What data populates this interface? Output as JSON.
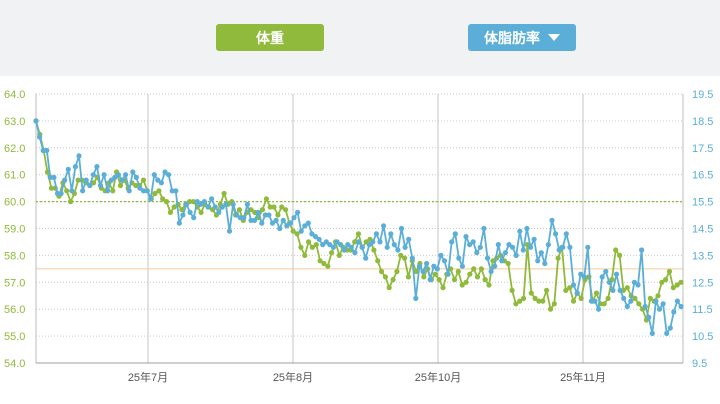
{
  "header": {
    "weight_button": {
      "label": "体重",
      "color": "#8fba3b"
    },
    "fat_button": {
      "label": "体脂肪率",
      "color": "#5aaed8",
      "icon": "caret-down-icon"
    }
  },
  "chart_data": {
    "type": "line",
    "title": "",
    "xlabel": "",
    "ylabel": "",
    "y_left": {
      "min": 54.0,
      "max": 64.0,
      "ticks": [
        "54.0",
        "55.0",
        "56.0",
        "57.0",
        "58.0",
        "59.0",
        "60.0",
        "61.0",
        "62.0",
        "63.0",
        "64.0"
      ],
      "color": "#8fba3b"
    },
    "y_right": {
      "min": 9.5,
      "max": 19.5,
      "ticks": [
        "9.5",
        "10.5",
        "11.5",
        "12.5",
        "13.5",
        "14.5",
        "15.5",
        "16.5",
        "17.5",
        "18.5",
        "19.5"
      ],
      "color": "#5aaed8"
    },
    "x_ticks": [
      "25年7月",
      "25年8月",
      "25年10月",
      "25年11月"
    ],
    "grid": true,
    "reference_lines": [
      {
        "axis": "left",
        "value": 60.0,
        "color": "#8fba3b",
        "style": "dotted"
      },
      {
        "axis": "left",
        "value": 57.5,
        "color": "#f5c99a",
        "style": "solid"
      }
    ],
    "series": [
      {
        "axis": "left",
        "color": "#8fba3b",
        "values": [
          63.0,
          62.5,
          61.9,
          61.1,
          60.5,
          60.5,
          60.2,
          60.7,
          60.4,
          60.0,
          60.3,
          60.8,
          60.8,
          60.7,
          60.6,
          60.7,
          60.9,
          60.5,
          60.4,
          60.7,
          60.4,
          61.1,
          60.6,
          60.8,
          60.5,
          60.7,
          60.6,
          60.6,
          60.8,
          60.4,
          60.1,
          60.3,
          60.4,
          60.1,
          60.0,
          59.6,
          59.8,
          59.9,
          59.7,
          59.9,
          60.0,
          60.0,
          59.8,
          59.6,
          59.9,
          59.8,
          59.7,
          59.5,
          59.9,
          60.3,
          59.9,
          60.0,
          59.5,
          59.7,
          59.3,
          59.6,
          59.7,
          59.6,
          59.4,
          59.7,
          60.1,
          59.8,
          59.8,
          59.5,
          59.8,
          59.7,
          59.2,
          58.9,
          58.8,
          58.3,
          58.0,
          58.5,
          58.3,
          58.4,
          57.8,
          57.7,
          57.6,
          58.1,
          58.5,
          58.0,
          58.3,
          58.2,
          58.2,
          58.5,
          58.8,
          58.3,
          58.5,
          58.6,
          58.2,
          57.8,
          57.4,
          57.2,
          56.8,
          57.1,
          57.4,
          58.0,
          57.9,
          57.2,
          57.8,
          57.4,
          57.7,
          57.2,
          57.5,
          57.1,
          57.3,
          57.1,
          56.8,
          57.3,
          57.5,
          57.1,
          57.4,
          56.9,
          57.0,
          57.3,
          57.5,
          57.2,
          57.5,
          57.1,
          56.9,
          57.8,
          57.9,
          58.0,
          57.8,
          57.7,
          56.7,
          56.2,
          56.3,
          56.4,
          58.4,
          56.6,
          56.4,
          56.3,
          56.3,
          56.7,
          56.0,
          56.2,
          57.9,
          58.3,
          56.7,
          56.8,
          56.3,
          56.6,
          56.4,
          57.1,
          57.2,
          56.3,
          56.6,
          56.2,
          56.2,
          56.4,
          57.1,
          58.2,
          58.0,
          56.7,
          56.8,
          56.5,
          56.4,
          56.2,
          56.0,
          55.6,
          56.4,
          56.3,
          56.5,
          57.0,
          57.1,
          57.4,
          56.8,
          56.9,
          57.0
        ]
      },
      {
        "axis": "right",
        "color": "#5aaed8",
        "values": [
          18.5,
          17.9,
          17.4,
          17.4,
          16.4,
          16.4,
          15.8,
          15.8,
          16.3,
          16.7,
          15.9,
          16.8,
          17.2,
          15.9,
          16.3,
          16.1,
          16.5,
          16.8,
          16.1,
          16.5,
          15.9,
          16.3,
          16.4,
          16.5,
          16.3,
          16.5,
          15.9,
          16.6,
          16.4,
          16.0,
          15.9,
          15.9,
          15.6,
          16.5,
          16.3,
          16.2,
          16.6,
          16.5,
          15.9,
          15.9,
          14.7,
          15.0,
          15.4,
          15.1,
          14.9,
          15.5,
          15.4,
          15.5,
          15.3,
          15.6,
          15.3,
          15.1,
          15.3,
          15.4,
          14.4,
          15.4,
          15.0,
          14.9,
          14.9,
          15.4,
          14.8,
          14.8,
          15.1,
          14.7,
          15.0,
          15.0,
          14.7,
          14.8,
          14.5,
          14.8,
          14.6,
          14.7,
          14.9,
          15.1,
          14.4,
          14.6,
          14.7,
          14.3,
          14.2,
          14.1,
          13.9,
          14.0,
          13.9,
          13.8,
          14.0,
          13.9,
          13.7,
          13.9,
          13.8,
          13.6,
          14.0,
          13.8,
          13.4,
          13.9,
          14.0,
          14.3,
          14.0,
          14.6,
          13.8,
          14.3,
          13.9,
          13.7,
          14.5,
          13.8,
          14.1,
          13.4,
          11.9,
          13.1,
          12.9,
          13.2,
          12.6,
          13.1,
          13.0,
          13.5,
          13.3,
          12.8,
          14.0,
          14.3,
          13.4,
          13.1,
          14.2,
          13.9,
          14.0,
          13.6,
          13.8,
          14.5,
          13.4,
          12.9,
          13.1,
          13.9,
          13.3,
          13.6,
          13.9,
          13.8,
          13.5,
          14.4,
          13.7,
          14.5,
          13.8,
          14.1,
          13.3,
          13.6,
          13.2,
          13.9,
          14.8,
          14.3,
          13.7,
          13.8,
          14.3,
          13.8,
          12.4,
          12.1,
          12.8,
          12.7,
          13.8,
          11.8,
          11.8,
          11.5,
          12.7,
          12.9,
          12.5,
          12.2,
          12.8,
          12.2,
          11.9,
          11.6,
          11.8,
          12.5,
          12.4,
          13.7,
          11.6,
          11.2,
          10.6,
          11.8,
          11.5,
          11.7,
          10.6,
          10.8,
          11.4,
          11.8,
          11.6
        ]
      }
    ]
  }
}
